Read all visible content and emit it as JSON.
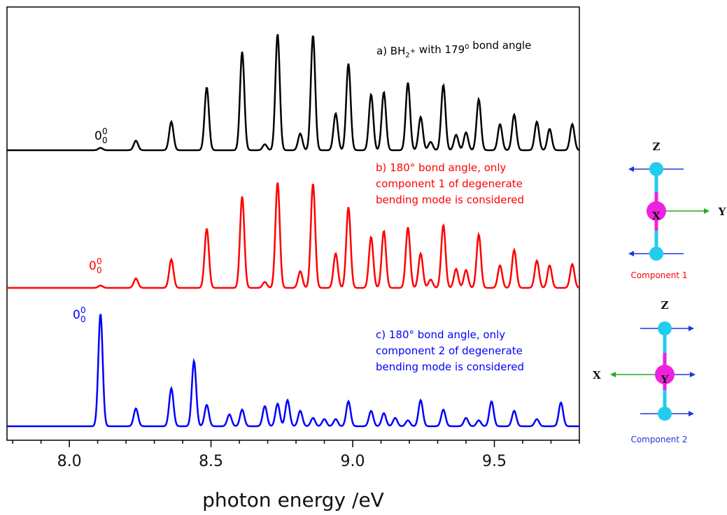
{
  "chart_data": {
    "type": "line",
    "xlabel": "photon energy /eV",
    "xlim": [
      7.78,
      9.8
    ],
    "xticks": [
      8.0,
      8.5,
      9.0,
      9.5
    ],
    "xtick_labels": [
      "8.0",
      "8.5",
      "9.0",
      "9.5"
    ],
    "minor_tick_step": 0.1,
    "grid": false,
    "line_width_ev": 0.018,
    "series": [
      {
        "key": "a",
        "color": "#000000",
        "annotation": "a) BH₂⁺ with 179⁰ bond angle",
        "origin_label": {
          "main": "0",
          "sup": "0",
          "sub": "0",
          "x": 8.11
        },
        "peaks": [
          [
            8.11,
            0.02
          ],
          [
            8.235,
            0.08
          ],
          [
            8.36,
            0.24
          ],
          [
            8.485,
            0.53
          ],
          [
            8.61,
            0.83
          ],
          [
            8.69,
            0.05
          ],
          [
            8.735,
            0.98
          ],
          [
            8.815,
            0.14
          ],
          [
            8.86,
            0.97
          ],
          [
            8.94,
            0.31
          ],
          [
            8.985,
            0.73
          ],
          [
            9.065,
            0.47
          ],
          [
            9.11,
            0.49
          ],
          [
            9.195,
            0.57
          ],
          [
            9.24,
            0.28
          ],
          [
            9.275,
            0.07
          ],
          [
            9.32,
            0.55
          ],
          [
            9.365,
            0.13
          ],
          [
            9.4,
            0.15
          ],
          [
            9.445,
            0.43
          ],
          [
            9.52,
            0.22
          ],
          [
            9.57,
            0.3
          ],
          [
            9.65,
            0.24
          ],
          [
            9.695,
            0.18
          ],
          [
            9.775,
            0.22
          ]
        ]
      },
      {
        "key": "b",
        "color": "#ff0000",
        "annotation_lines": [
          "b) 180° bond angle, only",
          "component 1 of degenerate",
          "bending mode is considered"
        ],
        "origin_label": {
          "main": "0",
          "sup": "0",
          "sub": "0",
          "x": 8.11
        },
        "peaks": [
          [
            8.11,
            0.02
          ],
          [
            8.235,
            0.08
          ],
          [
            8.36,
            0.24
          ],
          [
            8.485,
            0.5
          ],
          [
            8.61,
            0.77
          ],
          [
            8.69,
            0.05
          ],
          [
            8.735,
            0.89
          ],
          [
            8.815,
            0.14
          ],
          [
            8.86,
            0.88
          ],
          [
            8.94,
            0.29
          ],
          [
            8.985,
            0.68
          ],
          [
            9.065,
            0.43
          ],
          [
            9.11,
            0.48
          ],
          [
            9.195,
            0.51
          ],
          [
            9.24,
            0.29
          ],
          [
            9.275,
            0.07
          ],
          [
            9.32,
            0.53
          ],
          [
            9.365,
            0.16
          ],
          [
            9.4,
            0.15
          ],
          [
            9.445,
            0.45
          ],
          [
            9.52,
            0.19
          ],
          [
            9.57,
            0.32
          ],
          [
            9.65,
            0.23
          ],
          [
            9.695,
            0.19
          ],
          [
            9.775,
            0.2
          ]
        ]
      },
      {
        "key": "c",
        "color": "#0000ff",
        "annotation_lines": [
          "c) 180° bond angle, only",
          "component 2 of degenerate",
          "bending mode is considered"
        ],
        "origin_label": {
          "main": "0",
          "sup": "0",
          "sub": "0",
          "x": 8.11
        },
        "peaks": [
          [
            8.11,
            0.95
          ],
          [
            8.235,
            0.15
          ],
          [
            8.36,
            0.32
          ],
          [
            8.44,
            0.55
          ],
          [
            8.485,
            0.18
          ],
          [
            8.565,
            0.1
          ],
          [
            8.61,
            0.14
          ],
          [
            8.69,
            0.17
          ],
          [
            8.735,
            0.19
          ],
          [
            8.77,
            0.22
          ],
          [
            8.815,
            0.13
          ],
          [
            8.86,
            0.07
          ],
          [
            8.9,
            0.06
          ],
          [
            8.94,
            0.06
          ],
          [
            8.985,
            0.21
          ],
          [
            9.065,
            0.13
          ],
          [
            9.11,
            0.11
          ],
          [
            9.15,
            0.07
          ],
          [
            9.195,
            0.05
          ],
          [
            9.24,
            0.22
          ],
          [
            9.32,
            0.14
          ],
          [
            9.4,
            0.07
          ],
          [
            9.445,
            0.05
          ],
          [
            9.49,
            0.21
          ],
          [
            9.57,
            0.13
          ],
          [
            9.65,
            0.06
          ],
          [
            9.735,
            0.2
          ]
        ]
      }
    ]
  },
  "components": [
    {
      "label": "Component 1",
      "label_color": "#ff0000",
      "axes": {
        "up": "Z",
        "right": "Y",
        "center": "X"
      }
    },
    {
      "label": "Component 2",
      "label_color": "#0000ff",
      "axes": {
        "up": "Z",
        "left": "X",
        "center": "Y"
      }
    }
  ],
  "colors": {
    "atom_h": "#22ccee",
    "atom_b": "#ee22dd",
    "bond": "#22ccee",
    "arrow_blue": "#2233dd",
    "arrow_green": "#22aa22"
  }
}
